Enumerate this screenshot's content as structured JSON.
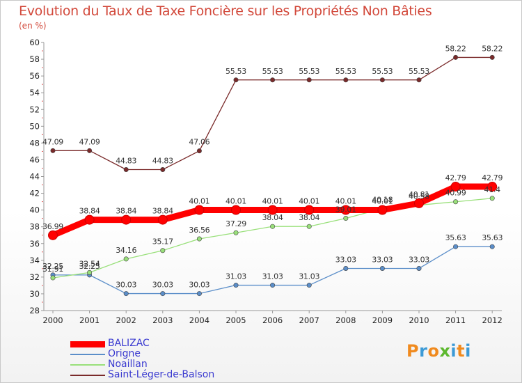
{
  "title": "Evolution du Taux de Taxe Foncière sur les Propriétés Non Bâties",
  "unit": "(en %)",
  "logo": {
    "chars": [
      "P",
      "r",
      "o",
      "x",
      "i",
      "t",
      "i"
    ],
    "colors": [
      "#f08a1e",
      "#3c9ad6",
      "#f08a1e",
      "#5cb82e",
      "#3c9ad6",
      "#f08a1e",
      "#3c9ad6"
    ]
  },
  "chart_data": {
    "type": "line",
    "categories": [
      "2000",
      "2001",
      "2002",
      "2003",
      "2004",
      "2005",
      "2006",
      "2007",
      "2008",
      "2009",
      "2010",
      "2011",
      "2012"
    ],
    "ylim": [
      28,
      60
    ],
    "yticks": [
      "28",
      "30",
      "32",
      "34",
      "36",
      "38",
      "40",
      "42",
      "44",
      "46",
      "48",
      "50",
      "52",
      "54",
      "56",
      "58",
      "60"
    ],
    "grid": false,
    "legend_position": "bottom-left",
    "series": [
      {
        "name": "BALIZAC",
        "color": "#ff0000",
        "values": [
          36.99,
          38.84,
          38.84,
          38.84,
          40.01,
          40.01,
          40.01,
          40.01,
          40.01,
          40.01,
          40.81,
          42.79,
          42.79
        ],
        "labels": [
          "36.99",
          "38.84",
          "38.84",
          "38.84",
          "40.01",
          "40.01",
          "40.01",
          "40.01",
          "40.01",
          "40.01",
          "40.81",
          "42.79",
          "42.79"
        ]
      },
      {
        "name": "Origne",
        "color": "#5b8ec9",
        "values": [
          32.25,
          32.25,
          30.03,
          30.03,
          30.03,
          31.03,
          31.03,
          31.03,
          33.03,
          33.03,
          33.03,
          35.63,
          35.63
        ],
        "labels": [
          "32.25",
          "32.25",
          "30.03",
          "30.03",
          "30.03",
          "31.03",
          "31.03",
          "31.03",
          "33.03",
          "33.03",
          "33.03",
          "35.63",
          "35.63"
        ]
      },
      {
        "name": "Noaillan",
        "color": "#99e07a",
        "values": [
          31.91,
          32.54,
          34.16,
          35.17,
          36.56,
          37.29,
          38.04,
          38.04,
          39.01,
          40.18,
          40.58,
          40.99,
          41.4
        ],
        "labels": [
          "31.91",
          "32.54",
          "34.16",
          "35.17",
          "36.56",
          "37.29",
          "38.04",
          "38.04",
          "39.01",
          "40.18",
          "40.58",
          "40.99",
          "41.4"
        ]
      },
      {
        "name": "Saint-Léger-de-Balson",
        "color": "#7a2a2a",
        "values": [
          47.09,
          47.09,
          44.83,
          44.83,
          47.06,
          55.53,
          55.53,
          55.53,
          55.53,
          55.53,
          55.53,
          58.22,
          58.22
        ],
        "labels": [
          "47.09",
          "47.09",
          "44.83",
          "44.83",
          "47.06",
          "55.53",
          "55.53",
          "55.53",
          "55.53",
          "55.53",
          "55.53",
          "58.22",
          "58.22"
        ]
      }
    ]
  }
}
